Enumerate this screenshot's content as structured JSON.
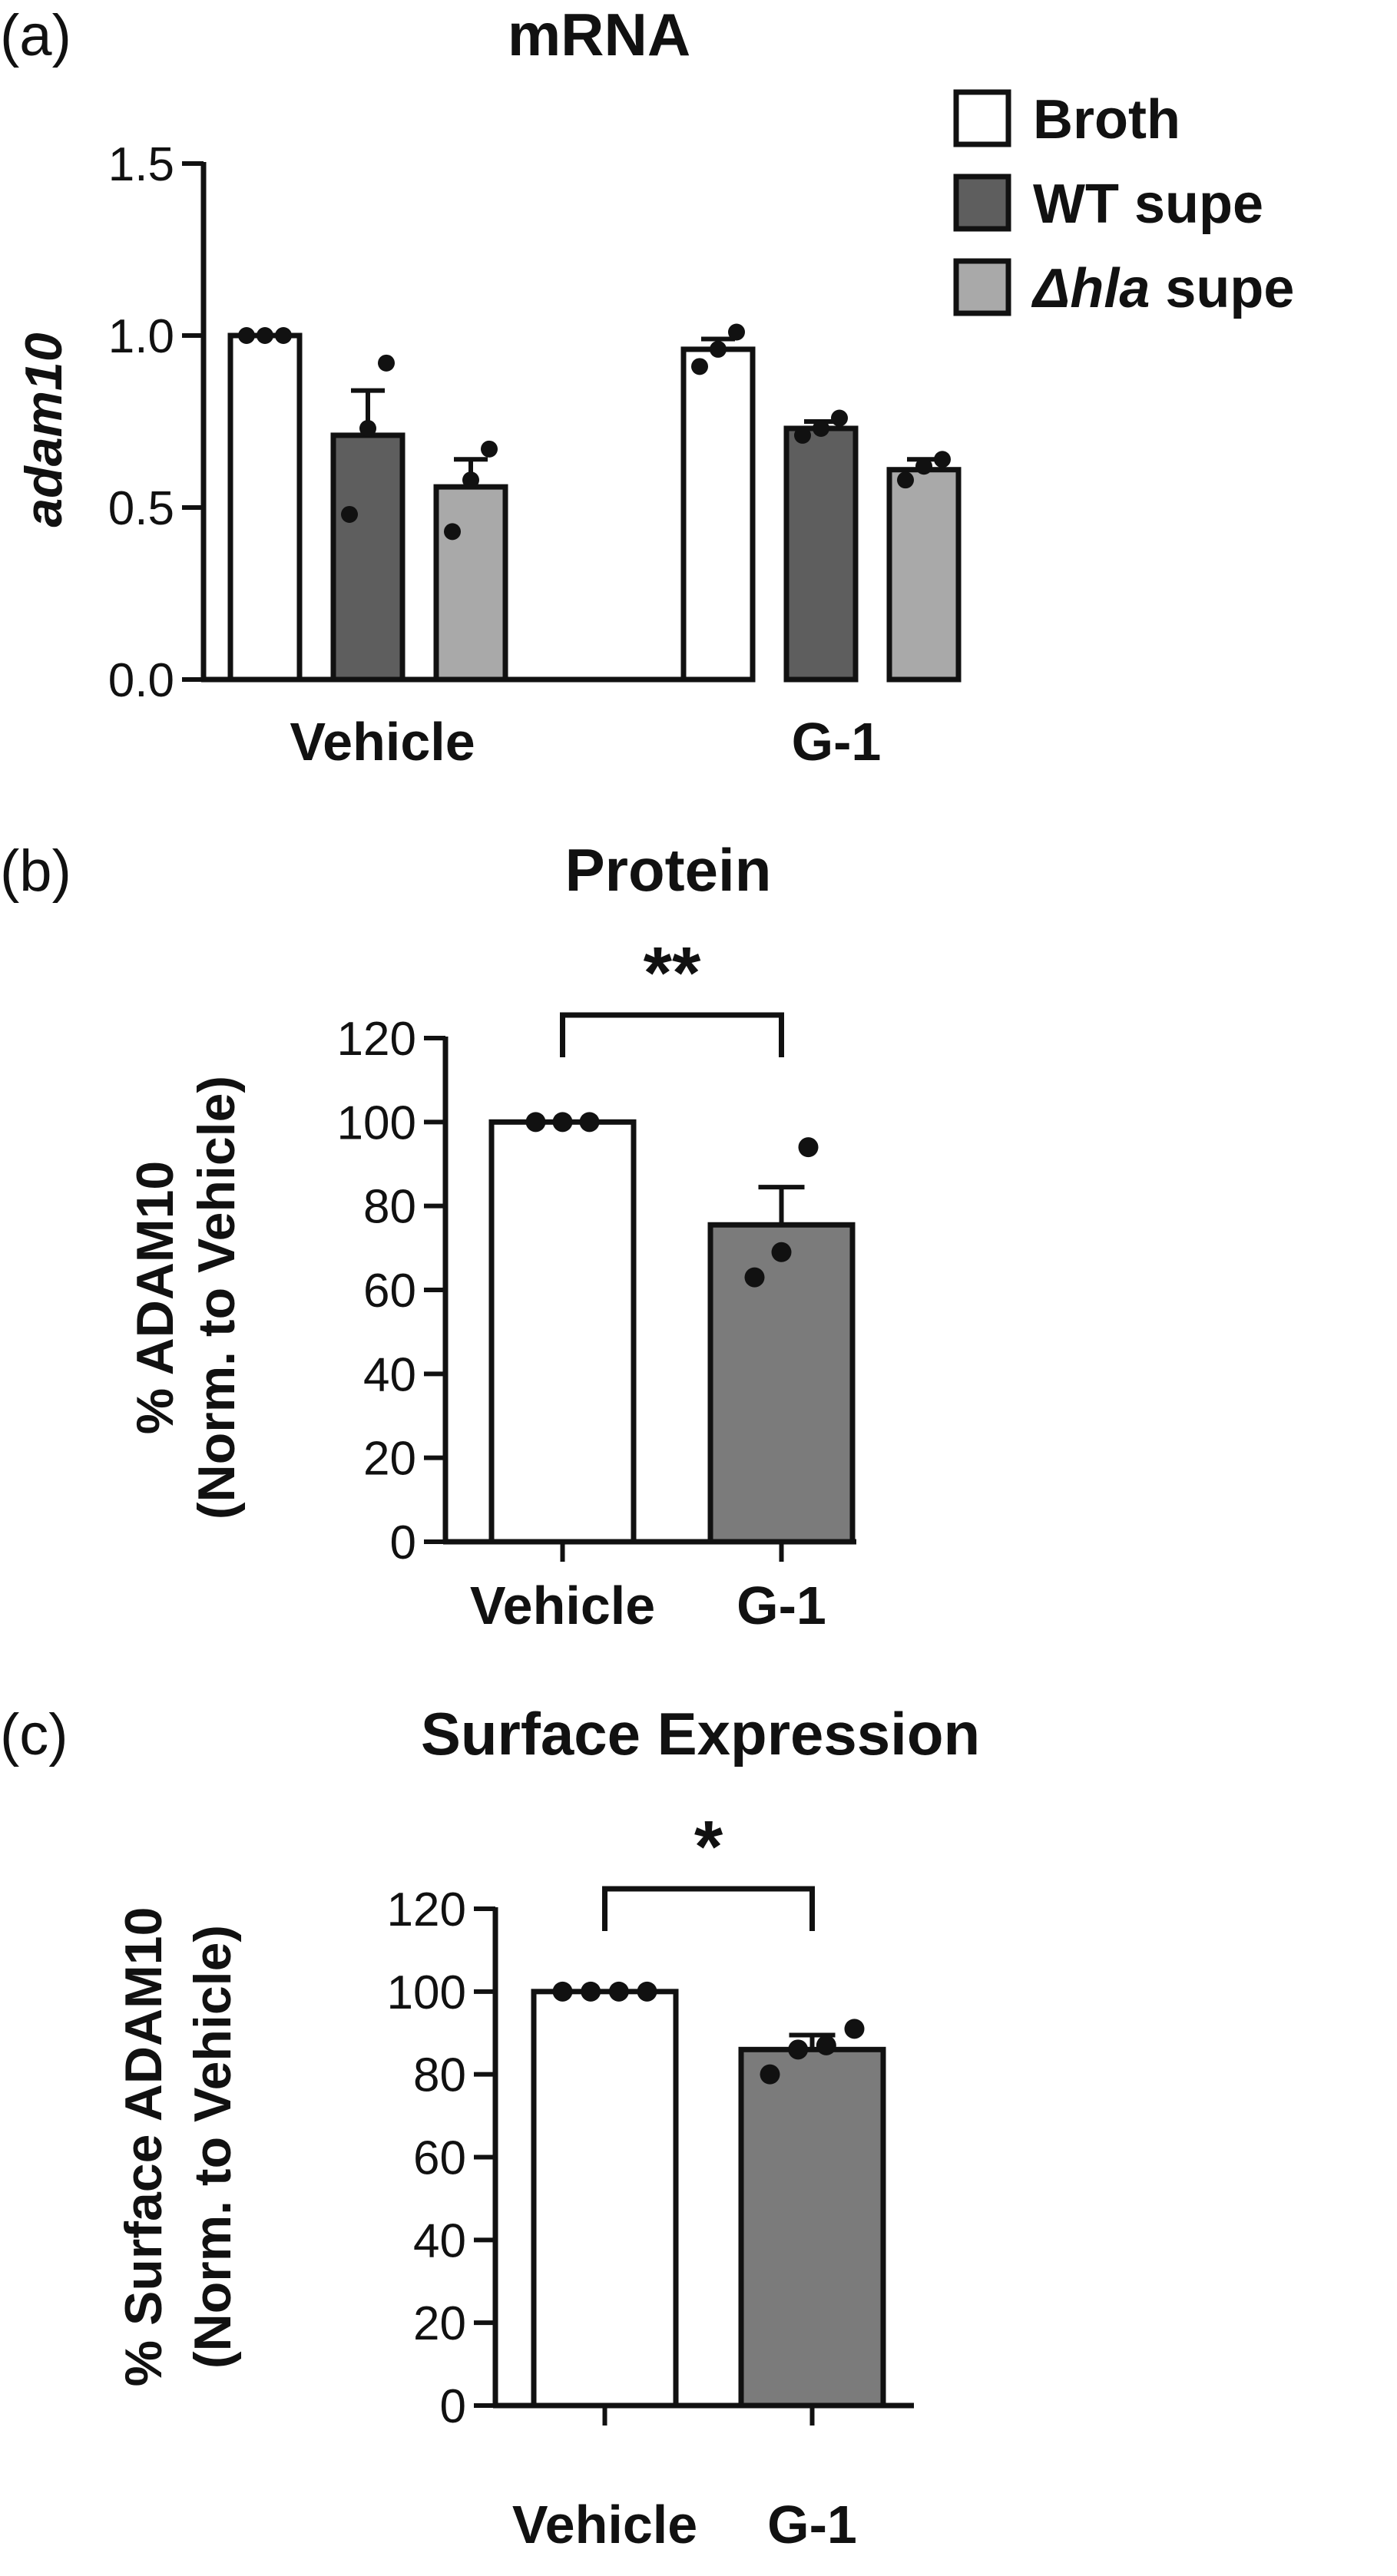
{
  "chart_data": [
    {
      "type": "bar",
      "panel_label": "(a)",
      "title": "mRNA",
      "xlabel": "",
      "ylabel": "adam10",
      "ylim": [
        0,
        1.5
      ],
      "yticks": [
        "0.0",
        "0.5",
        "1.0",
        "1.5"
      ],
      "categories": [
        "Vehicle",
        "G-1"
      ],
      "legend_position": "top-right",
      "series": [
        {
          "name": "Broth",
          "color": "#ffffff",
          "values": [
            1.0,
            0.96
          ],
          "errors": [
            0.0,
            0.03
          ],
          "points": [
            [
              1.0,
              1.0,
              1.0
            ],
            [
              0.91,
              0.96,
              1.01
            ]
          ]
        },
        {
          "name": "WT supe",
          "color": "#5e5e5e",
          "values": [
            0.71,
            0.73
          ],
          "errors": [
            0.13,
            0.02
          ],
          "points": [
            [
              0.48,
              0.73,
              0.92
            ],
            [
              0.71,
              0.73,
              0.76
            ]
          ]
        },
        {
          "name": "Δhla supe",
          "name_italic": "Δhla",
          "name_rest": " supe",
          "color": "#a9a9a9",
          "values": [
            0.56,
            0.61
          ],
          "errors": [
            0.08,
            0.03
          ],
          "points": [
            [
              0.43,
              0.58,
              0.67
            ],
            [
              0.58,
              0.62,
              0.64
            ]
          ]
        }
      ]
    },
    {
      "type": "bar",
      "panel_label": "(b)",
      "title": "Protein",
      "xlabel": "",
      "ylabel_lines": [
        "% ADAM10",
        "(Norm. to Vehicle)"
      ],
      "ylim": [
        0,
        120
      ],
      "yticks": [
        "0",
        "20",
        "40",
        "60",
        "80",
        "100",
        "120"
      ],
      "categories": [
        "Vehicle",
        "G-1"
      ],
      "colors": [
        "#ffffff",
        "#7b7b7b"
      ],
      "values": [
        100,
        75.5
      ],
      "errors": [
        0,
        9
      ],
      "points": [
        [
          100,
          100,
          100
        ],
        [
          63,
          69,
          94
        ]
      ],
      "significance": "**"
    },
    {
      "type": "bar",
      "panel_label": "(c)",
      "title": "Surface Expression",
      "xlabel": "",
      "ylabel_lines": [
        "% Surface ADAM10",
        "(Norm. to Vehicle)"
      ],
      "ylim": [
        0,
        120
      ],
      "yticks": [
        "0",
        "20",
        "40",
        "60",
        "80",
        "100",
        "120"
      ],
      "categories": [
        "Vehicle",
        "G-1"
      ],
      "colors": [
        "#ffffff",
        "#7b7b7b"
      ],
      "values": [
        100,
        86
      ],
      "errors": [
        0,
        3.5
      ],
      "points": [
        [
          100,
          100,
          100,
          100
        ],
        [
          80,
          86,
          87,
          91
        ]
      ],
      "significance": "*"
    }
  ]
}
